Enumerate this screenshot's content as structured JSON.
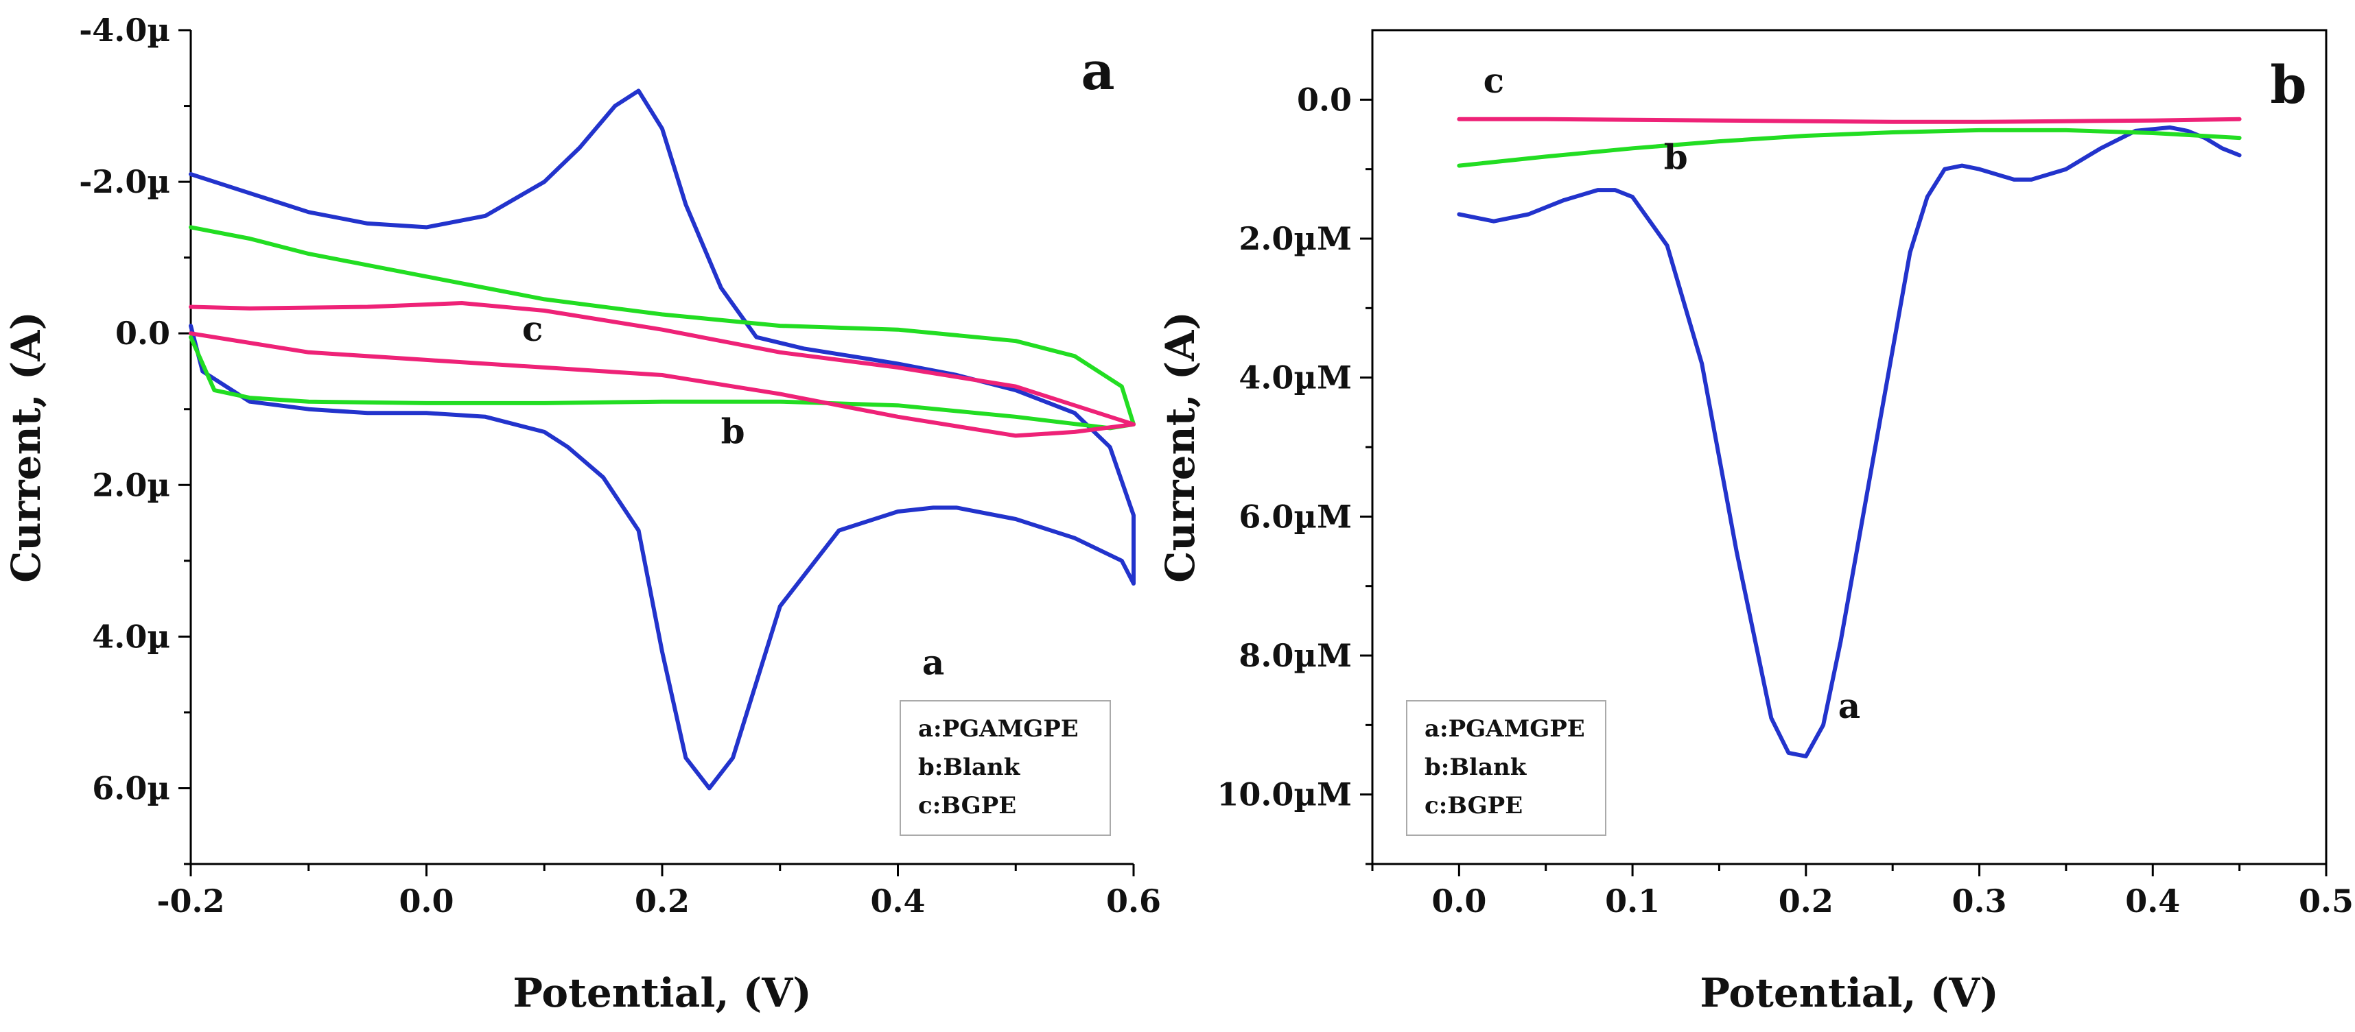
{
  "chart_data": [
    {
      "type": "line",
      "panel_label": "a",
      "xlabel": "Potential, (V)",
      "ylabel": "Current, (A)",
      "xlim": [
        -0.2,
        0.6
      ],
      "ylim": [
        -4.0,
        7.0
      ],
      "y_inverted": true,
      "x_ticks": [
        -0.2,
        0.0,
        0.2,
        0.4,
        0.6
      ],
      "x_tick_labels": [
        "-0.2",
        "0.0",
        "0.2",
        "0.4",
        "0.6"
      ],
      "y_ticks": [
        -4.0,
        -2.0,
        0.0,
        2.0,
        4.0,
        6.0
      ],
      "y_tick_labels": [
        "-4.0µ",
        "-2.0µ",
        "0.0",
        "2.0µ",
        "4.0µ",
        "6.0µ"
      ],
      "legend": [
        "a:PGAMGPE",
        "b:Blank",
        "c:BGPE"
      ],
      "legend_position": "bottom-right",
      "series": [
        {
          "name": "a",
          "label": "a",
          "color": "#2233cc",
          "x": [
            -0.2,
            -0.15,
            -0.1,
            -0.05,
            0.0,
            0.05,
            0.1,
            0.13,
            0.16,
            0.18,
            0.2,
            0.22,
            0.25,
            0.28,
            0.32,
            0.36,
            0.4,
            0.45,
            0.5,
            0.55,
            0.58,
            0.6,
            0.6,
            0.59,
            0.55,
            0.5,
            0.45,
            0.43,
            0.4,
            0.35,
            0.3,
            0.28,
            0.26,
            0.24,
            0.22,
            0.2,
            0.18,
            0.15,
            0.12,
            0.1,
            0.05,
            0.0,
            -0.05,
            -0.1,
            -0.15,
            -0.19,
            -0.2
          ],
          "y": [
            -2.1,
            -1.85,
            -1.6,
            -1.45,
            -1.4,
            -1.55,
            -2.0,
            -2.45,
            -3.0,
            -3.2,
            -2.7,
            -1.7,
            -0.6,
            0.05,
            0.2,
            0.3,
            0.4,
            0.55,
            0.75,
            1.05,
            1.5,
            2.4,
            3.3,
            3.0,
            2.7,
            2.45,
            2.3,
            2.3,
            2.35,
            2.6,
            3.6,
            4.6,
            5.6,
            6.0,
            5.6,
            4.2,
            2.6,
            1.9,
            1.5,
            1.3,
            1.1,
            1.05,
            1.05,
            1.0,
            0.9,
            0.5,
            -0.1
          ],
          "line_width": 3
        },
        {
          "name": "b",
          "label": "b",
          "color": "#22dd22",
          "x": [
            -0.2,
            -0.15,
            -0.1,
            0.0,
            0.1,
            0.2,
            0.3,
            0.4,
            0.5,
            0.55,
            0.59,
            0.6,
            0.58,
            0.5,
            0.4,
            0.3,
            0.2,
            0.1,
            0.0,
            -0.1,
            -0.15,
            -0.18,
            -0.2
          ],
          "y": [
            -1.4,
            -1.25,
            -1.05,
            -0.75,
            -0.45,
            -0.25,
            -0.1,
            -0.05,
            0.1,
            0.3,
            0.7,
            1.2,
            1.25,
            1.1,
            0.95,
            0.9,
            0.9,
            0.92,
            0.92,
            0.9,
            0.85,
            0.75,
            0.05
          ],
          "line_width": 3
        },
        {
          "name": "c",
          "label": "c",
          "color": "#ee2277",
          "x": [
            -0.2,
            -0.15,
            -0.05,
            0.03,
            0.1,
            0.2,
            0.3,
            0.4,
            0.5,
            0.55,
            0.6,
            0.55,
            0.5,
            0.4,
            0.3,
            0.2,
            0.1,
            0.0,
            -0.1,
            -0.2
          ],
          "y": [
            -0.35,
            -0.33,
            -0.35,
            -0.4,
            -0.3,
            -0.05,
            0.25,
            0.45,
            0.7,
            0.95,
            1.2,
            1.3,
            1.35,
            1.1,
            0.8,
            0.55,
            0.45,
            0.35,
            0.25,
            0.0
          ],
          "line_width": 3
        }
      ],
      "annotations": [
        {
          "text": "a",
          "x": 0.43,
          "y": 4.5
        },
        {
          "text": "b",
          "x": 0.26,
          "y": 1.45
        },
        {
          "text": "c",
          "x": 0.09,
          "y": 0.1
        }
      ]
    },
    {
      "type": "line",
      "panel_label": "b",
      "xlabel": "Potential, (V)",
      "ylabel": "Current, (A)",
      "xlim": [
        -0.05,
        0.5
      ],
      "ylim": [
        -1.0,
        11.0
      ],
      "y_inverted": true,
      "x_ticks": [
        0.0,
        0.1,
        0.2,
        0.3,
        0.4,
        0.5
      ],
      "x_tick_labels": [
        "0.0",
        "0.1",
        "0.2",
        "0.3",
        "0.4",
        "0.5"
      ],
      "y_ticks": [
        0.0,
        2.0,
        4.0,
        6.0,
        8.0,
        10.0
      ],
      "y_tick_labels": [
        "0.0",
        "2.0µM",
        "4.0µM",
        "6.0µM",
        "8.0µM",
        "10.0µM"
      ],
      "legend": [
        "a:PGAMGPE",
        "b:Blank",
        "c:BGPE"
      ],
      "legend_position": "bottom-left",
      "series": [
        {
          "name": "a",
          "label": "a",
          "color": "#2233cc",
          "x": [
            0.0,
            0.02,
            0.04,
            0.06,
            0.08,
            0.09,
            0.1,
            0.12,
            0.14,
            0.16,
            0.18,
            0.19,
            0.2,
            0.21,
            0.22,
            0.24,
            0.26,
            0.27,
            0.28,
            0.29,
            0.3,
            0.32,
            0.33,
            0.35,
            0.37,
            0.39,
            0.41,
            0.42,
            0.43,
            0.44,
            0.45
          ],
          "y": [
            1.65,
            1.75,
            1.65,
            1.45,
            1.3,
            1.3,
            1.4,
            2.1,
            3.8,
            6.5,
            8.9,
            9.4,
            9.45,
            9.0,
            7.8,
            5.0,
            2.2,
            1.4,
            1.0,
            0.95,
            1.0,
            1.15,
            1.15,
            1.0,
            0.7,
            0.45,
            0.4,
            0.45,
            0.55,
            0.7,
            0.8
          ],
          "line_width": 3
        },
        {
          "name": "b",
          "label": "b",
          "color": "#22dd22",
          "x": [
            0.0,
            0.05,
            0.1,
            0.15,
            0.2,
            0.25,
            0.3,
            0.35,
            0.4,
            0.45
          ],
          "y": [
            0.95,
            0.82,
            0.7,
            0.6,
            0.52,
            0.47,
            0.44,
            0.44,
            0.48,
            0.55
          ],
          "line_width": 3
        },
        {
          "name": "c",
          "label": "c",
          "color": "#ee2277",
          "x": [
            0.0,
            0.05,
            0.1,
            0.15,
            0.2,
            0.25,
            0.3,
            0.35,
            0.4,
            0.45
          ],
          "y": [
            0.28,
            0.28,
            0.29,
            0.3,
            0.31,
            0.32,
            0.32,
            0.31,
            0.3,
            0.28
          ],
          "line_width": 3
        }
      ],
      "annotations": [
        {
          "text": "a",
          "x": 0.225,
          "y": 8.9
        },
        {
          "text": "b",
          "x": 0.125,
          "y": 1.0
        },
        {
          "text": "c",
          "x": 0.02,
          "y": -0.1
        }
      ]
    }
  ]
}
